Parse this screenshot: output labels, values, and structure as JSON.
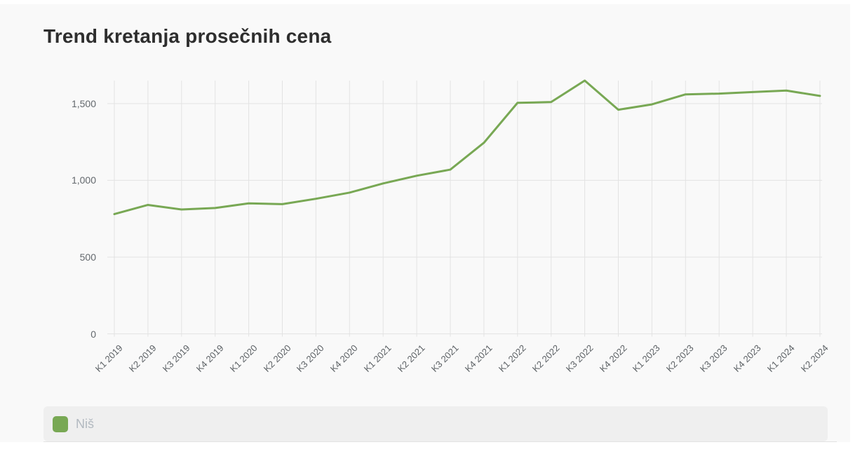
{
  "chart_data": {
    "type": "line",
    "title": "Trend kretanja prosečnih cena",
    "categories": [
      "K1 2019",
      "K2 2019",
      "K3 2019",
      "K4 2019",
      "K1 2020",
      "K2 2020",
      "K3 2020",
      "K4 2020",
      "K1 2021",
      "K2 2021",
      "K3 2021",
      "K4 2021",
      "K1 2022",
      "K2 2022",
      "K3 2022",
      "K4 2022",
      "K1 2023",
      "K2 2023",
      "K3 2023",
      "K4 2023",
      "K1 2024",
      "K2 2024"
    ],
    "series": [
      {
        "name": "Niš",
        "color": "#78a854",
        "values": [
          780,
          840,
          810,
          820,
          850,
          845,
          880,
          920,
          980,
          1030,
          1070,
          1245,
          1505,
          1510,
          1650,
          1460,
          1495,
          1560,
          1565,
          1575,
          1585,
          1550
        ]
      }
    ],
    "yticks": [
      {
        "v": 0,
        "label": "0"
      },
      {
        "v": 500,
        "label": "500"
      },
      {
        "v": 1000,
        "label": "1,000"
      },
      {
        "v": 1500,
        "label": "1,500"
      }
    ],
    "ylim": [
      0,
      1650
    ],
    "xlabel": "",
    "ylabel": "",
    "grid": true,
    "legend_position": "bottom",
    "colors": {
      "line": "#78a854",
      "gridline": "#e3e3e3",
      "background": "#f9f9f9",
      "legend_bar": "#efefef",
      "legend_text": "#b2b9c0",
      "axis_text": "#63686d",
      "title_text": "#2e2e2e"
    }
  }
}
